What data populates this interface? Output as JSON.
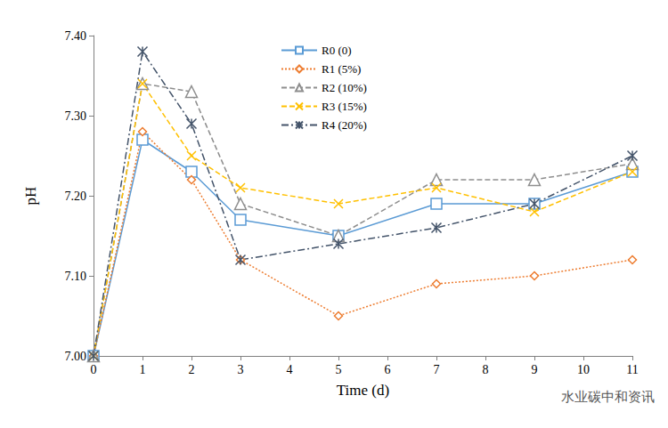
{
  "chart_data": {
    "type": "line",
    "x_label": "Time (d)",
    "y_label": "pH",
    "annotations": [
      "水业碳中和资讯"
    ],
    "x": [
      0,
      1,
      2,
      3,
      5,
      7,
      9,
      11
    ],
    "xlim": [
      0,
      11
    ],
    "xticks": [
      0,
      1,
      2,
      3,
      4,
      5,
      6,
      7,
      8,
      9,
      10,
      11
    ],
    "ylim": [
      7.0,
      7.4
    ],
    "yticks": [
      {
        "value": 7.0,
        "label": "7.00"
      },
      {
        "value": 7.1,
        "label": "7.10"
      },
      {
        "value": 7.2,
        "label": "7.20"
      },
      {
        "value": 7.3,
        "label": "7.30"
      },
      {
        "value": 7.4,
        "label": "7.40"
      }
    ],
    "grid": false,
    "legend": "top",
    "series": [
      {
        "name": "R0 (0)",
        "color": "#5B9BD5",
        "marker": "square",
        "line_style": "solid",
        "values": [
          7.0,
          7.27,
          7.23,
          7.17,
          7.15,
          7.19,
          7.19,
          7.23
        ]
      },
      {
        "name": "R1 (5%)",
        "color": "#ED7D31",
        "marker": "diamond",
        "line_style": "dotted",
        "values": [
          7.0,
          7.28,
          7.22,
          7.12,
          7.05,
          7.09,
          7.1,
          7.12
        ]
      },
      {
        "name": "R2 (10%)",
        "color": "#8E8E8E",
        "marker": "triangle",
        "line_style": "dashed",
        "values": [
          7.0,
          7.34,
          7.33,
          7.19,
          7.15,
          7.22,
          7.22,
          7.24
        ]
      },
      {
        "name": "R3 (15%)",
        "color": "#FFC000",
        "marker": "x",
        "line_style": "dashed",
        "values": [
          7.0,
          7.34,
          7.25,
          7.21,
          7.19,
          7.21,
          7.18,
          7.23
        ]
      },
      {
        "name": "R4 (20%)",
        "color": "#44546A",
        "marker": "asterisk",
        "line_style": "dashdot",
        "values": [
          7.0,
          7.38,
          7.29,
          7.12,
          7.14,
          7.16,
          7.19,
          7.25
        ]
      }
    ]
  }
}
